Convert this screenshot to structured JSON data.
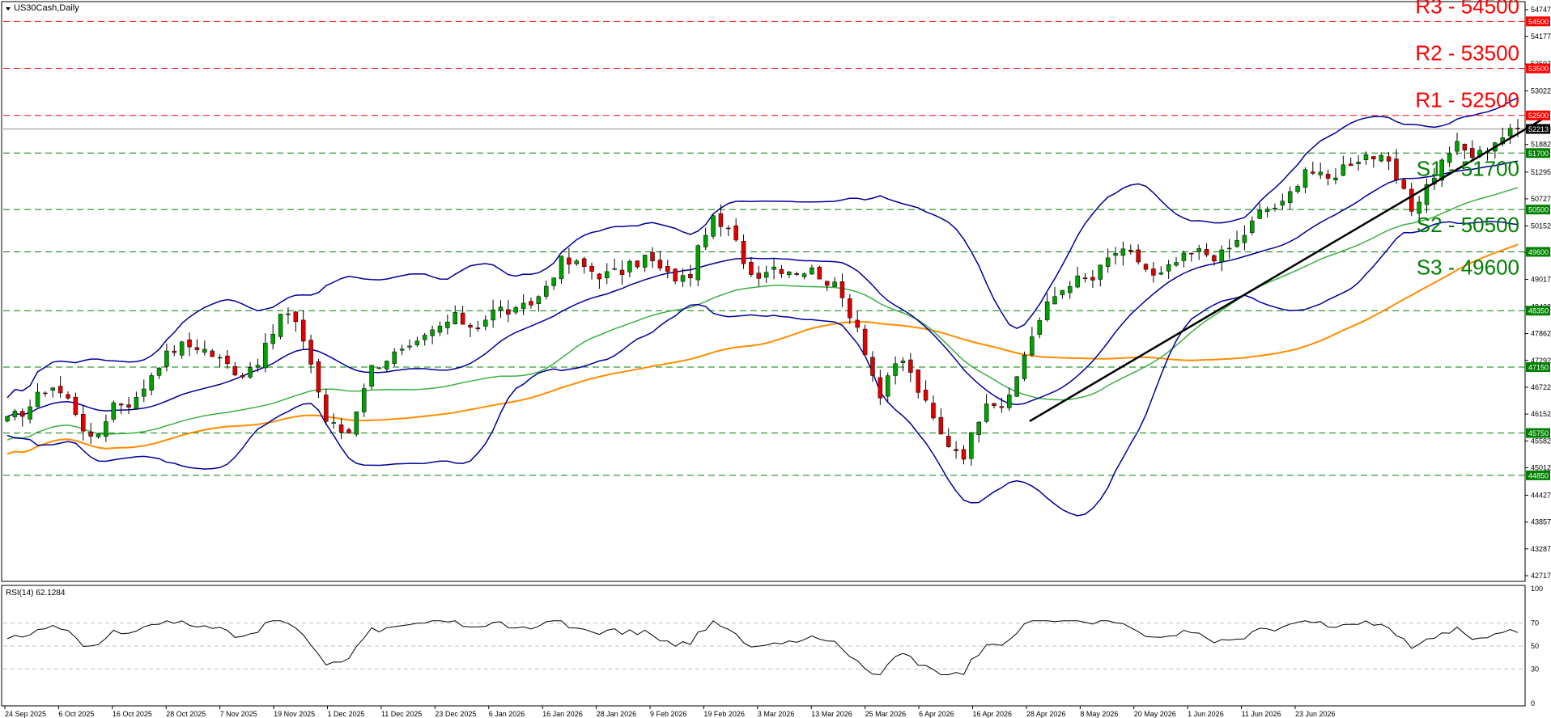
{
  "window": {
    "title": "US30Cash,Daily",
    "menu_icon": "triangle-down-icon"
  },
  "colors": {
    "background": "#ffffff",
    "grid_line": "#000000",
    "bull_candle": "#00a000",
    "bear_candle": "#e00000",
    "bollinger": "#000099",
    "sma_100": "#3cb043",
    "sma_200": "#ff8c00",
    "trendline": "#000000",
    "resistance": "#ff0000",
    "support": "#008000",
    "rsi_line": "#000000",
    "rsi_level": "#c0c0c0"
  },
  "levels": [
    {
      "label": "R3 - 54500",
      "value": 54500,
      "type": "resistance",
      "tag": "54500"
    },
    {
      "label": "R2 - 53500",
      "value": 53500,
      "type": "resistance",
      "tag": "53500"
    },
    {
      "label": "R1 - 52500",
      "value": 52500,
      "type": "resistance",
      "tag": "52500"
    },
    {
      "label": "S1 - 51700",
      "value": 51700,
      "type": "support",
      "tag": "51700"
    },
    {
      "label": "S2 - 50500",
      "value": 50500,
      "type": "support",
      "tag": "50500"
    },
    {
      "label": "S3 - 49600",
      "value": 49600,
      "type": "support",
      "tag": "49600"
    },
    {
      "label": "",
      "value": 48350,
      "type": "support",
      "tag": "48350"
    },
    {
      "label": "",
      "value": 47150,
      "type": "support",
      "tag": "47150"
    },
    {
      "label": "",
      "value": 45750,
      "type": "support",
      "tag": "45750"
    },
    {
      "label": "",
      "value": 44850,
      "type": "support",
      "tag": "44850"
    }
  ],
  "current_price": {
    "value": 52213,
    "tag": "52213"
  },
  "chart_data": {
    "type": "candlestick",
    "symbol": "US30Cash",
    "timeframe": "Daily",
    "ylim": [
      42717,
      54747
    ],
    "y_ticks": [
      "54747",
      "54177",
      "53592",
      "53022",
      "52213",
      "51882",
      "51295",
      "50727",
      "50152",
      "49582",
      "49017",
      "48432",
      "47862",
      "47292",
      "46722",
      "46152",
      "45582",
      "45012",
      "44427",
      "43857",
      "43287",
      "42717"
    ],
    "x_ticks": [
      "24 Sep 2025",
      "6 Oct 2025",
      "16 Oct 2025",
      "28 Oct 2025",
      "7 Nov 2025",
      "19 Nov 2025",
      "1 Dec 2025",
      "11 Dec 2025",
      "23 Dec 2025",
      "6 Jan 2026",
      "16 Jan 2026",
      "28 Jan 2026",
      "9 Feb 2026",
      "19 Feb 2026",
      "3 Mar 2026",
      "13 Mar 2026",
      "25 Mar 2026",
      "6 Apr 2026",
      "16 Apr 2026",
      "28 Apr 2026",
      "8 May 2026",
      "20 May 2026",
      "1 Jun 2026",
      "11 Jun 2026",
      "23 Jun 2026"
    ],
    "close_anchors": [
      46000,
      46300,
      46800,
      46400,
      45500,
      46400,
      46400,
      47200,
      47600,
      47600,
      47300,
      47000,
      47400,
      48400,
      47700,
      46000,
      45700,
      47100,
      47400,
      47500,
      47900,
      48200,
      48000,
      48400,
      48300,
      48650,
      49400,
      49300,
      49100,
      49200,
      49500,
      49100,
      49000,
      50300,
      50000,
      49100,
      49300,
      49200,
      49200,
      48800,
      48000,
      46500,
      47400,
      46500,
      45600,
      45300,
      46500,
      46300,
      47700,
      48550,
      49000,
      49000,
      49600,
      49500,
      49000,
      49400,
      49600,
      49500,
      49900,
      50500,
      50600,
      51400,
      51100,
      51500,
      51700,
      51400,
      50500,
      51200,
      51900,
      51600,
      52000,
      52213
    ],
    "trendline": {
      "start": {
        "date": "1 Apr 2026",
        "value": 46000
      },
      "end": {
        "date": "30 Jun 2026",
        "value": 52500
      }
    },
    "indicators": [
      "Bollinger Bands",
      "Moving Average 100",
      "Moving Average 200"
    ]
  },
  "rsi": {
    "title": "RSI(14) 62.1284",
    "ylim": [
      0,
      100
    ],
    "y_ticks": [
      "100",
      "70",
      "50",
      "30",
      "0"
    ],
    "levels": [
      70,
      50,
      30
    ]
  }
}
